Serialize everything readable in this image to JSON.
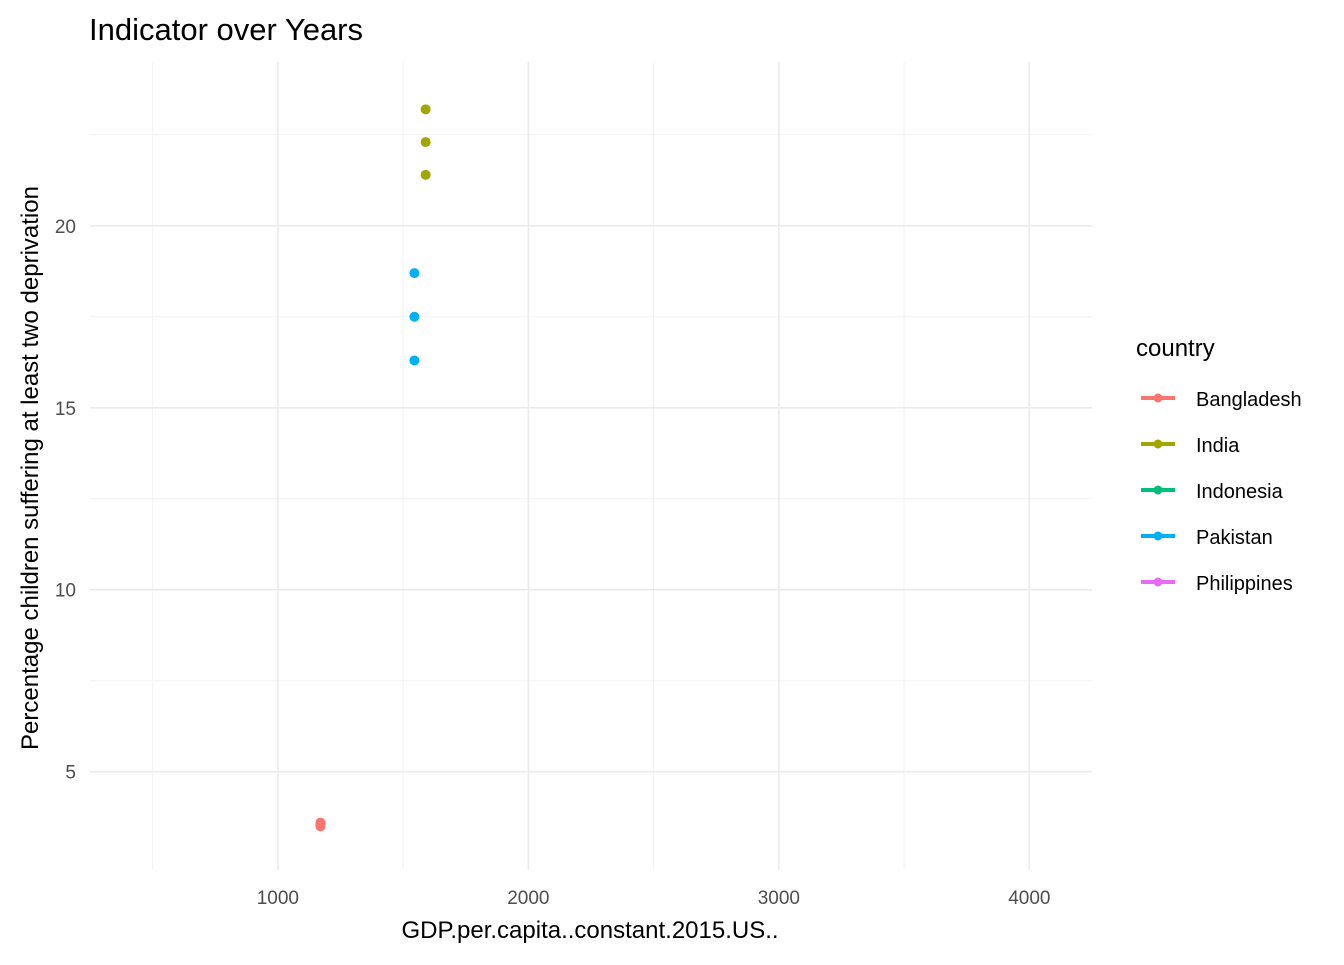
{
  "chart_data": {
    "type": "scatter",
    "title": "Indicator over Years",
    "xlabel": "GDP.per.capita..constant.2015.US..",
    "ylabel": "Percentage children suffering at least two deprivation",
    "xlim": [
      250,
      4250
    ],
    "ylim": [
      2.3,
      24.5
    ],
    "x_ticks": [
      1000,
      2000,
      3000,
      4000
    ],
    "x_minor_ticks": [
      500,
      1500,
      2500,
      3500
    ],
    "y_ticks": [
      5,
      10,
      15,
      20
    ],
    "y_minor_ticks": [
      7.5,
      12.5,
      17.5,
      22.5
    ],
    "grid": true,
    "legend": {
      "title": "country",
      "position": "right",
      "entries": [
        {
          "name": "Bangladesh",
          "color": "#F8766D"
        },
        {
          "name": "India",
          "color": "#A3A500"
        },
        {
          "name": "Indonesia",
          "color": "#00BF7D"
        },
        {
          "name": "Pakistan",
          "color": "#00B0F6"
        },
        {
          "name": "Philippines",
          "color": "#E76BF3"
        }
      ]
    },
    "series": [
      {
        "name": "Bangladesh",
        "color": "#F8766D",
        "points": [
          {
            "x": 1170,
            "y": 3.5
          },
          {
            "x": 1170,
            "y": 3.55
          },
          {
            "x": 1170,
            "y": 3.6
          }
        ]
      },
      {
        "name": "India",
        "color": "#A3A500",
        "points": [
          {
            "x": 1590,
            "y": 23.2
          },
          {
            "x": 1590,
            "y": 22.3
          },
          {
            "x": 1590,
            "y": 21.4
          }
        ]
      },
      {
        "name": "Indonesia",
        "color": "#00BF7D",
        "points": []
      },
      {
        "name": "Pakistan",
        "color": "#00B0F6",
        "points": [
          {
            "x": 1545,
            "y": 18.7
          },
          {
            "x": 1545,
            "y": 17.5
          },
          {
            "x": 1545,
            "y": 16.3
          }
        ]
      },
      {
        "name": "Philippines",
        "color": "#E76BF3",
        "points": []
      }
    ]
  }
}
